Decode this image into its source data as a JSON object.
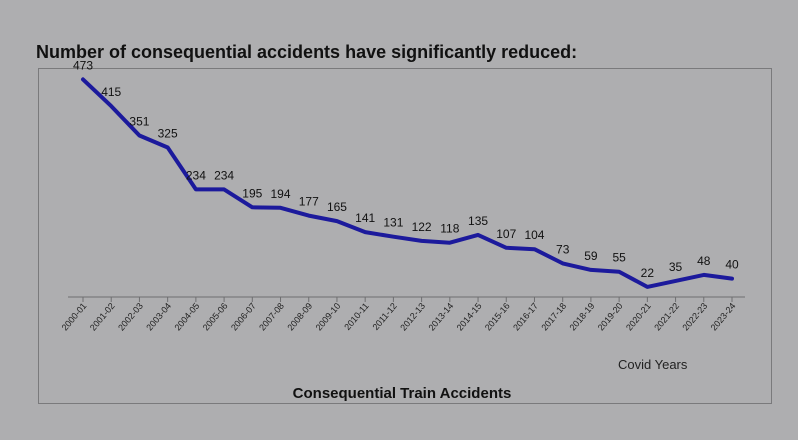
{
  "heading": "Number of consequential accidents have significantly reduced:",
  "chart_data": {
    "type": "line",
    "title": "Consequential Train Accidents",
    "categories": [
      "2000-01",
      "2001-02",
      "2002-03",
      "2003-04",
      "2004-05",
      "2005-06",
      "2006-07",
      "2007-08",
      "2008-09",
      "2009-10",
      "2010-11",
      "2011-12",
      "2012-13",
      "2013-14",
      "2014-15",
      "2015-16",
      "2016-17",
      "2017-18",
      "2018-19",
      "2019-20",
      "2020-21",
      "2021-22",
      "2022-23",
      "2023-24"
    ],
    "values": [
      473,
      415,
      351,
      325,
      234,
      234,
      195,
      194,
      177,
      165,
      141,
      131,
      122,
      118,
      135,
      107,
      104,
      73,
      59,
      55,
      22,
      35,
      48,
      40
    ],
    "annotation": "Covid Years",
    "xlabel": "",
    "ylabel": "",
    "ylim": [
      0,
      500
    ],
    "line_color": "#1c1a9c",
    "grid": false,
    "legend": "none"
  }
}
